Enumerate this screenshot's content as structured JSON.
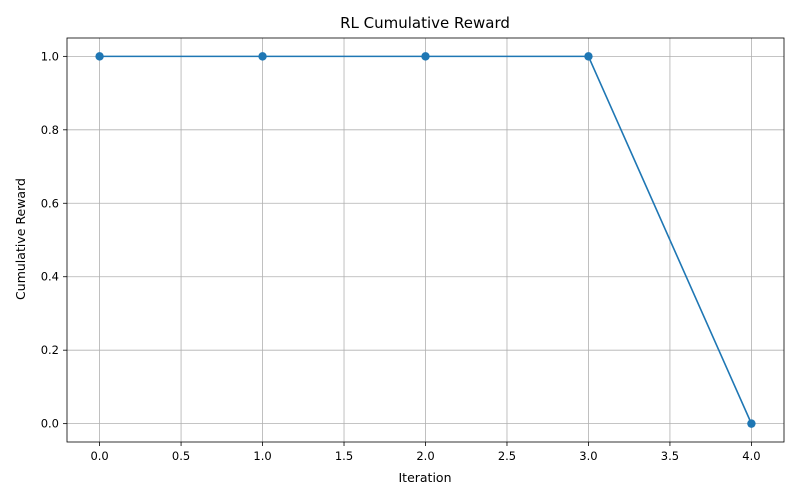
{
  "chart_data": {
    "type": "line",
    "title": "RL Cumulative Reward",
    "xlabel": "Iteration",
    "ylabel": "Cumulative Reward",
    "xlim": [
      -0.2,
      4.2
    ],
    "ylim": [
      -0.05,
      1.05
    ],
    "xticks": [
      0.0,
      0.5,
      1.0,
      1.5,
      2.0,
      2.5,
      3.0,
      3.5,
      4.0
    ],
    "xtick_labels": [
      "0.0",
      "0.5",
      "1.0",
      "1.5",
      "2.0",
      "2.5",
      "3.0",
      "3.5",
      "4.0"
    ],
    "yticks": [
      0.0,
      0.2,
      0.4,
      0.6,
      0.8,
      1.0
    ],
    "ytick_labels": [
      "0.0",
      "0.2",
      "0.4",
      "0.6",
      "0.8",
      "1.0"
    ],
    "grid": true,
    "marker": "circle",
    "color": "#1f77b4",
    "series": [
      {
        "x": [
          0,
          1,
          2,
          3,
          4
        ],
        "y": [
          1,
          1,
          1,
          1,
          0
        ]
      }
    ]
  }
}
